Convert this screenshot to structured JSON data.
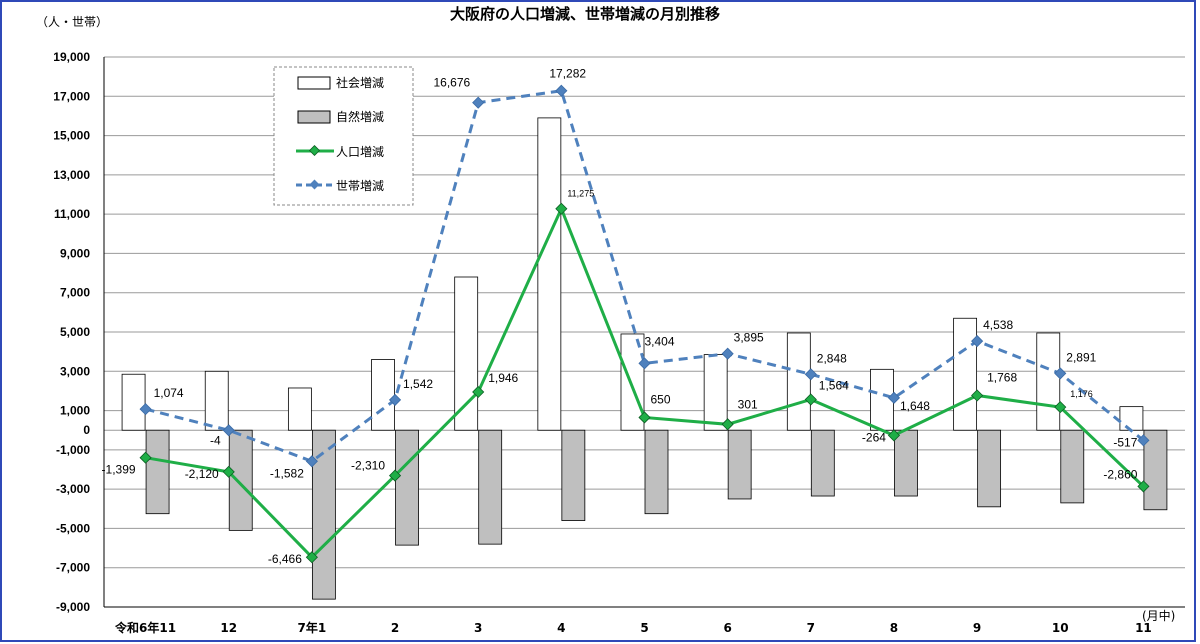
{
  "chart_data": {
    "type": "bar+line",
    "title": "大阪府の人口増減、世帯増減の月別推移",
    "ylabel": "（人・世帯）",
    "xunit": "(月中)",
    "ylim": [
      -9000,
      19000
    ],
    "yticks": [
      -9000,
      -7000,
      -5000,
      -3000,
      -1000,
      0,
      1000,
      3000,
      5000,
      7000,
      9000,
      11000,
      13000,
      15000,
      17000,
      19000
    ],
    "ytick_labels": [
      "-9,000",
      "-7,000",
      "-5,000",
      "-3,000",
      "-1,000",
      "0",
      "1,000",
      "3,000",
      "5,000",
      "7,000",
      "9,000",
      "11,000",
      "13,000",
      "15,000",
      "17,000",
      "19,000"
    ],
    "categories": [
      "令和6年11",
      "12",
      "7年1",
      "2",
      "3",
      "4",
      "5",
      "6",
      "7",
      "8",
      "9",
      "10",
      "11"
    ],
    "series": [
      {
        "name": "社会増減",
        "kind": "bar",
        "color": "#ffffff",
        "values": [
          2850,
          3000,
          2150,
          3600,
          7800,
          15900,
          4900,
          3850,
          4950,
          3100,
          5700,
          4950,
          1200
        ]
      },
      {
        "name": "自然増減",
        "kind": "bar",
        "color": "#bfbfbf",
        "values": [
          -4250,
          -5100,
          -8600,
          -5850,
          -5800,
          -4600,
          -4250,
          -3500,
          -3350,
          -3350,
          -3900,
          -3700,
          -4050
        ]
      },
      {
        "name": "人口増減",
        "kind": "line",
        "color": "#1fae47",
        "values": [
          -1399,
          -2120,
          -6466,
          -2310,
          1946,
          11275,
          650,
          301,
          1564,
          -264,
          1768,
          1176,
          -2860
        ],
        "labels": [
          "-1,399",
          "-2,120",
          "-6,466",
          "-2,310",
          "1,946",
          "11,275",
          "650",
          "301",
          "1,564",
          "-264",
          "1,768",
          "1,176",
          "-2,860"
        ]
      },
      {
        "name": "世帯増減",
        "kind": "line",
        "color": "#4f81bd",
        "values": [
          1074,
          -4,
          -1582,
          1542,
          16676,
          17282,
          3404,
          3895,
          2848,
          1648,
          4538,
          2891,
          -517
        ],
        "labels": [
          "1,074",
          "-4",
          "-1,582",
          "1,542",
          "16,676",
          "17,282",
          "3,404",
          "3,895",
          "2,848",
          "1,648",
          "4,538",
          "2,891",
          "-517"
        ]
      }
    ],
    "legend": [
      "社会増減",
      "自然増減",
      "人口増減",
      "世帯増減"
    ],
    "legend_position": "top-left",
    "grid": true
  }
}
